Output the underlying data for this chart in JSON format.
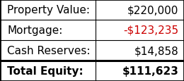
{
  "rows": [
    {
      "label": "Property Value:",
      "value": "$220,000",
      "label_bold": false,
      "value_bold": false,
      "value_color": "#000000"
    },
    {
      "label": "Mortgage:",
      "value": "-$123,235",
      "label_bold": false,
      "value_bold": false,
      "value_color": "#cc0000"
    },
    {
      "label": "Cash Reserves:",
      "value": "$14,858",
      "label_bold": false,
      "value_bold": false,
      "value_color": "#000000"
    },
    {
      "label": "Total Equity:",
      "value": "$111,623",
      "label_bold": true,
      "value_bold": true,
      "value_color": "#000000"
    }
  ],
  "bg_color": "#ffffff",
  "border_color": "#000000",
  "divider_color": "#000000",
  "label_fontsize": 11,
  "value_fontsize": 11,
  "col_split": 0.52,
  "outer_border_lw": 2.0,
  "inner_border_lw": 0.8,
  "total_border_lw": 2.2
}
